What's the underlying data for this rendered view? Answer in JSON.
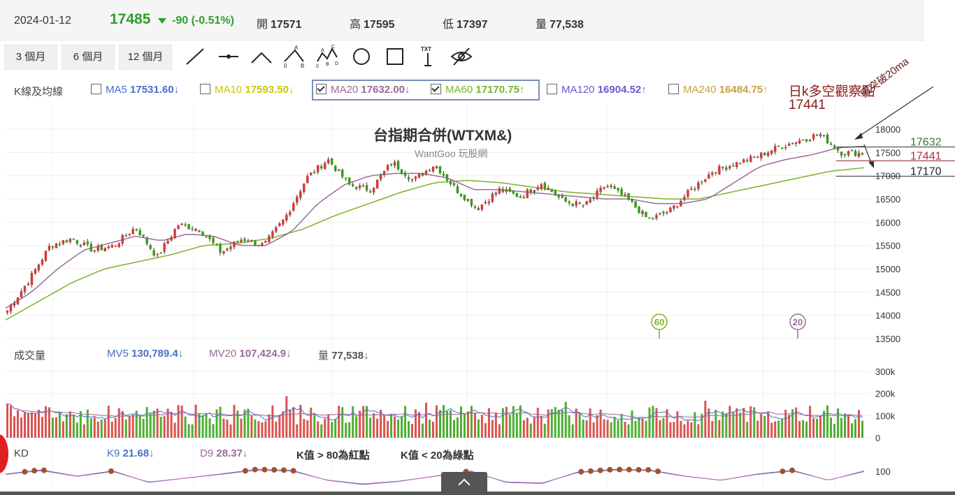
{
  "header": {
    "date": "2024-01-12",
    "price": "17485",
    "change": "-90 (-0.51%)",
    "open_label": "開",
    "open": "17571",
    "high_label": "高",
    "high": "17595",
    "low_label": "低",
    "low": "17397",
    "volume_label": "量",
    "volume": "77,538"
  },
  "periods": [
    "3 個月",
    "6 個月",
    "12 個月"
  ],
  "ma": {
    "title": "K線及均線",
    "items": [
      {
        "label": "MA5",
        "value": "17531.60",
        "arrow": "↓",
        "checked": false,
        "color": "#4a6fc4"
      },
      {
        "label": "MA10",
        "value": "17593.50",
        "arrow": "↓",
        "checked": false,
        "color": "#c8c800"
      },
      {
        "label": "MA20",
        "value": "17632.00",
        "arrow": "↓",
        "checked": true,
        "color": "#9a6a9a"
      },
      {
        "label": "MA60",
        "value": "17170.75",
        "arrow": "↑",
        "checked": true,
        "color": "#7ab32a"
      },
      {
        "label": "MA120",
        "value": "16904.52",
        "arrow": "↑",
        "checked": false,
        "color": "#6a5acd"
      },
      {
        "label": "MA240",
        "value": "16484.75",
        "arrow": "↑",
        "checked": false,
        "color": "#c8a040"
      }
    ]
  },
  "chart": {
    "title": "台指期合併(WTXM&)",
    "subtitle": "WantGoo 玩股網"
  },
  "annotations": {
    "note_title": "日k多空觀察點",
    "note_value": "17441",
    "rotated": "假突破20ma",
    "line_ma20": "17632",
    "line_key": "17441",
    "line_ma60": "17170",
    "marker_60": "60",
    "marker_20": "20"
  },
  "volume": {
    "title": "成交量",
    "mv5_label": "MV5",
    "mv5": "130,789.4",
    "mv5_arrow": "↓",
    "mv20_label": "MV20",
    "mv20": "107,424.9",
    "mv20_arrow": "↓",
    "vol_label": "量",
    "vol": "77,538",
    "vol_arrow": "↓"
  },
  "kd": {
    "title": "KD",
    "k_label": "K9",
    "k": "21.68",
    "k_arrow": "↓",
    "d_label": "D9",
    "d": "28.37",
    "d_arrow": "↓",
    "note_red": "K值 > 80為紅點",
    "note_green": "K值 < 20為綠點"
  },
  "chart_data": {
    "type": "candlestick",
    "title": "台指期合併(WTXM&)",
    "price_axis": {
      "ticks": [
        13500,
        14000,
        14500,
        15000,
        15500,
        16000,
        16500,
        17000,
        17500,
        18000
      ],
      "range": [
        13500,
        18000
      ]
    },
    "volume_axis": {
      "ticks": [
        "0",
        "100k",
        "200k",
        "300k"
      ],
      "range": [
        0,
        300000
      ]
    },
    "kd_axis": {
      "ticks": [
        "100"
      ]
    },
    "close_keypoints": [
      14100,
      14750,
      15500,
      15650,
      15400,
      15500,
      15900,
      15250,
      15950,
      15850,
      15350,
      15650,
      15500,
      16100,
      16950,
      17350,
      16800,
      16700,
      17300,
      16900,
      17250,
      16700,
      16300,
      16700,
      16550,
      16850,
      16450,
      16350,
      16800,
      16500,
      16050,
      16250,
      16700,
      17100,
      17250,
      17400,
      17600,
      17750,
      17900,
      17500,
      17485
    ],
    "series": [
      {
        "name": "MA20",
        "last": 17632.0,
        "color": "#9a6a9a",
        "keypoints": [
          14150,
          14500,
          15000,
          15400,
          15550,
          15700,
          15600,
          15750,
          15700,
          15500,
          15500,
          15800,
          16400,
          16800,
          17000,
          17050,
          17050,
          16950,
          16700,
          16700,
          16650,
          16600,
          16550,
          16500,
          16500,
          16400,
          16400,
          16500,
          16850,
          17200,
          17350,
          17450,
          17600,
          17632
        ]
      },
      {
        "name": "MA60",
        "last": 17170.75,
        "color": "#7ab32a",
        "keypoints": [
          13900,
          14300,
          14700,
          15000,
          15150,
          15300,
          15500,
          15550,
          15650,
          15850,
          16150,
          16400,
          16650,
          16850,
          16900,
          16850,
          16750,
          16650,
          16600,
          16550,
          16500,
          16500,
          16650,
          16800,
          16950,
          17100,
          17170.75
        ]
      }
    ],
    "volume_range_approx": [
      50000,
      200000
    ],
    "horizontal_levels": [
      17632,
      17441,
      17170
    ]
  }
}
